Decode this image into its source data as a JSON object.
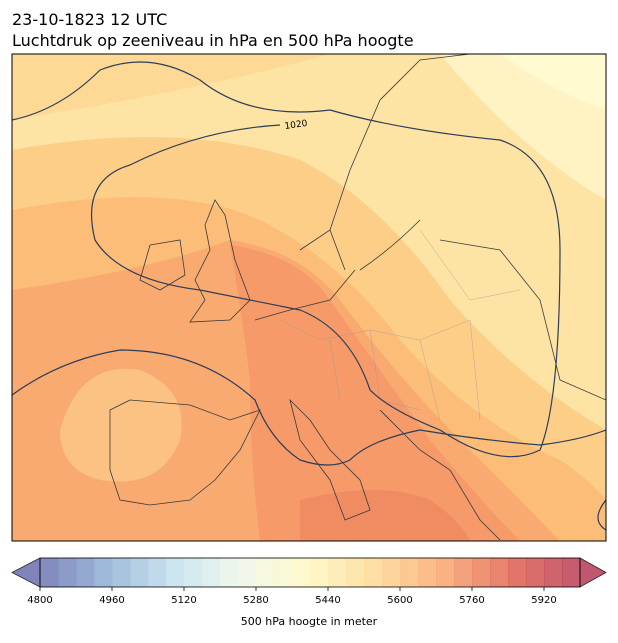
{
  "header": {
    "date": "23-10-1823 12 UTC",
    "title": "Luchtdruk op zeeniveau in hPa en 500 hPa hoogte"
  },
  "map": {
    "isobar_label": "1020"
  },
  "colorbar": {
    "lim": [
      4800,
      6000
    ],
    "step": 40,
    "ticks": [
      4800,
      4960,
      5120,
      5280,
      5440,
      5600,
      5760,
      5920
    ],
    "label": "500 hPa hoogte in meter",
    "colors": [
      "#6a6fb0",
      "#8fb0d4",
      "#c4e1ee",
      "#eef7e8",
      "#fff7c0",
      "#fdd792",
      "#f9a46e",
      "#e0604f",
      "#b73a55"
    ]
  }
}
